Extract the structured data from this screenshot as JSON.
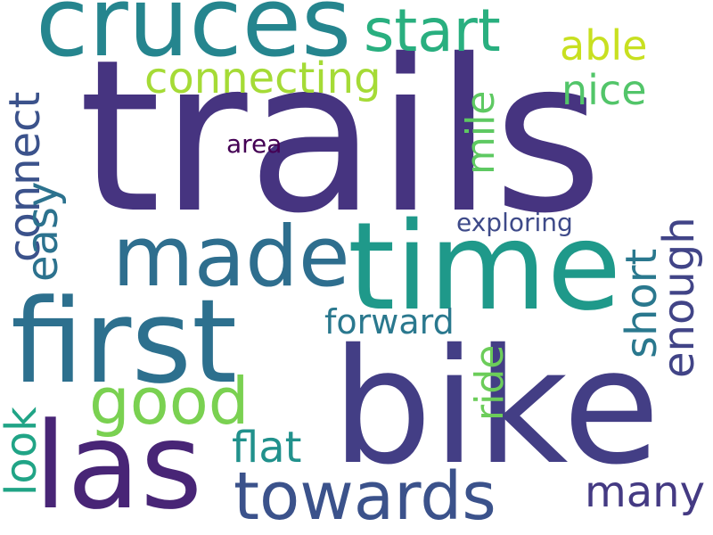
{
  "words": {
    "trails": {
      "text": "trails",
      "color": "#463480"
    },
    "bike": {
      "text": "bike",
      "color": "#433e85"
    },
    "first": {
      "text": "first",
      "color": "#2d708e"
    },
    "time": {
      "text": "time",
      "color": "#1f998a"
    },
    "cruces": {
      "text": "cruces",
      "color": "#25858e"
    },
    "las": {
      "text": "las",
      "color": "#482576"
    },
    "made": {
      "text": "made",
      "color": "#2e6e8e"
    },
    "towards": {
      "text": "towards",
      "color": "#3b528b"
    },
    "start": {
      "text": "start",
      "color": "#29af7f"
    },
    "connecting": {
      "text": "connecting",
      "color": "#a5db36"
    },
    "able": {
      "text": "able",
      "color": "#c8e020"
    },
    "nice": {
      "text": "nice",
      "color": "#52c569"
    },
    "good": {
      "text": "good",
      "color": "#7ad151"
    },
    "flat": {
      "text": "flat",
      "color": "#21918c"
    },
    "many": {
      "text": "many",
      "color": "#443a83"
    },
    "forward": {
      "text": "forward",
      "color": "#2a788e"
    },
    "area": {
      "text": "area",
      "color": "#440154"
    },
    "exploring": {
      "text": "exploring",
      "color": "#3e4a89"
    },
    "connect": {
      "text": "connect",
      "color": "#3b528b"
    },
    "easy": {
      "text": "easy",
      "color": "#2c728e"
    },
    "mile": {
      "text": "mile",
      "color": "#5ec962"
    },
    "short": {
      "text": "short",
      "color": "#2a788e"
    },
    "enough": {
      "text": "enough",
      "color": "#414487"
    },
    "ride": {
      "text": "ride",
      "color": "#6ccd5a"
    },
    "look": {
      "text": "look",
      "color": "#20a486"
    }
  }
}
